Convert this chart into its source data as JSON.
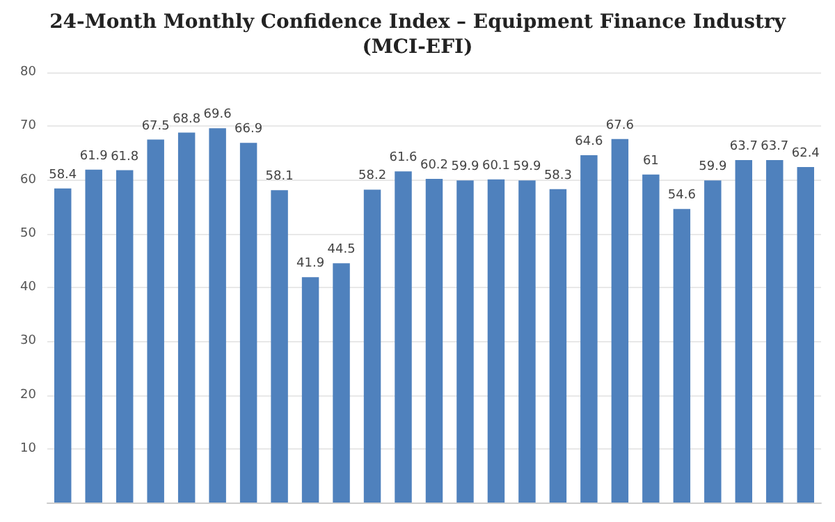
{
  "chart_data": {
    "type": "bar",
    "title": "24-Month Monthly Confidence Index – Equipment Finance Industry\n(MCI-EFI)",
    "categories": [
      null,
      null,
      null,
      null,
      null,
      null,
      null,
      null,
      null,
      null,
      null,
      null,
      null,
      null,
      null,
      null,
      null,
      null,
      null,
      null,
      null,
      null,
      null,
      null,
      null
    ],
    "values": [
      58.4,
      61.9,
      61.8,
      67.5,
      68.8,
      69.6,
      66.9,
      58.1,
      41.9,
      44.5,
      58.2,
      61.6,
      60.2,
      59.9,
      60.1,
      59.9,
      58.3,
      64.6,
      67.6,
      61,
      54.6,
      59.9,
      63.7,
      63.7,
      62.4
    ],
    "color": "#4f81bd",
    "ylim": [
      0,
      80
    ],
    "yticks": [
      10,
      20,
      30,
      40,
      50,
      60,
      70,
      80
    ],
    "grid": "y",
    "data_labels": true
  }
}
